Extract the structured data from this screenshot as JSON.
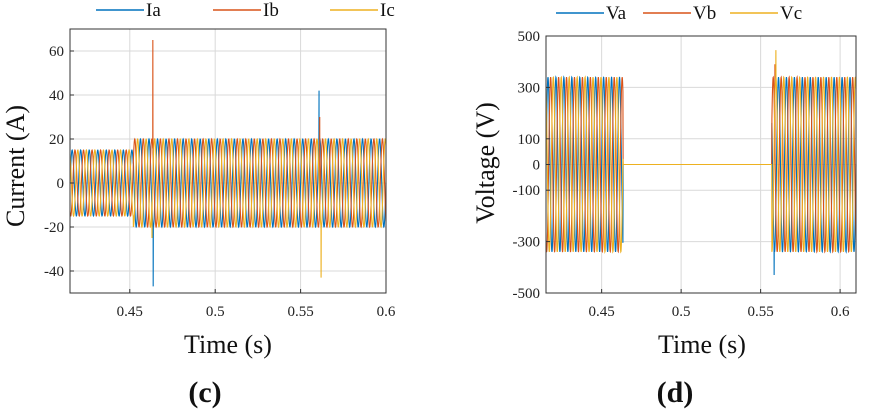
{
  "colors": {
    "a": "#0072BD",
    "b": "#D95319",
    "c": "#EDB120",
    "grid": "#d9d9d9",
    "axis": "#333333"
  },
  "chart_data": [
    {
      "type": "line",
      "panel_label": "(c)",
      "xlabel": "Time (s)",
      "ylabel": "Current (A)",
      "xlim": [
        0.415,
        0.6
      ],
      "ylim": [
        -50,
        70
      ],
      "xticks": [
        0.45,
        0.5,
        0.55,
        0.6
      ],
      "xtick_labels": [
        "0.45",
        "0.5",
        "0.55",
        "0.6"
      ],
      "yticks": [
        -40,
        -20,
        0,
        20,
        40,
        60
      ],
      "ytick_labels": [
        "-40",
        "-20",
        "0",
        "20",
        "40",
        "60"
      ],
      "grid": true,
      "legend_position": "top",
      "frequency_hz": 200,
      "series": [
        {
          "name": "Ia",
          "phase_deg": 0
        },
        {
          "name": "Ib",
          "phase_deg": -120
        },
        {
          "name": "Ic",
          "phase_deg": 120
        }
      ],
      "segments": [
        {
          "start": 0.415,
          "end": 0.452,
          "amplitude": 15
        },
        {
          "start": 0.452,
          "end": 0.6,
          "amplitude": 20
        }
      ],
      "spikes": [
        {
          "series": "Ib",
          "t": 0.4635,
          "value": 65
        },
        {
          "series": "Ia",
          "t": 0.4637,
          "value": -47
        },
        {
          "series": "Ic",
          "t": 0.463,
          "value": -25
        },
        {
          "series": "Ia",
          "t": 0.5608,
          "value": 42
        },
        {
          "series": "Ib",
          "t": 0.5612,
          "value": 30
        },
        {
          "series": "Ic",
          "t": 0.562,
          "value": -43
        }
      ]
    },
    {
      "type": "line",
      "panel_label": "(d)",
      "xlabel": "Time (s)",
      "ylabel": "Voltage (V)",
      "xlim": [
        0.415,
        0.61
      ],
      "ylim": [
        -500,
        500
      ],
      "xticks": [
        0.45,
        0.5,
        0.55,
        0.6
      ],
      "xtick_labels": [
        "0.45",
        "0.5",
        "0.55",
        "0.6"
      ],
      "yticks": [
        -500,
        -300,
        -100,
        0,
        100,
        300,
        500
      ],
      "ytick_labels": [
        "-500",
        "-300",
        "-100",
        "0",
        "100",
        "300",
        "500"
      ],
      "grid": true,
      "legend_position": "top",
      "frequency_hz": 200,
      "series": [
        {
          "name": "Va",
          "phase_deg": 0
        },
        {
          "name": "Vb",
          "phase_deg": -120
        },
        {
          "name": "Vc",
          "phase_deg": 120
        }
      ],
      "segments": [
        {
          "start": 0.415,
          "end": 0.4635,
          "amplitude": 340
        },
        {
          "start": 0.4635,
          "end": 0.557,
          "amplitude": 0
        },
        {
          "start": 0.557,
          "end": 0.61,
          "amplitude": 340
        }
      ],
      "spikes": [
        {
          "series": "Va",
          "t": 0.5585,
          "value": -430
        },
        {
          "series": "Vc",
          "t": 0.5596,
          "value": 445
        },
        {
          "series": "Vb",
          "t": 0.559,
          "value": 390
        }
      ]
    }
  ]
}
